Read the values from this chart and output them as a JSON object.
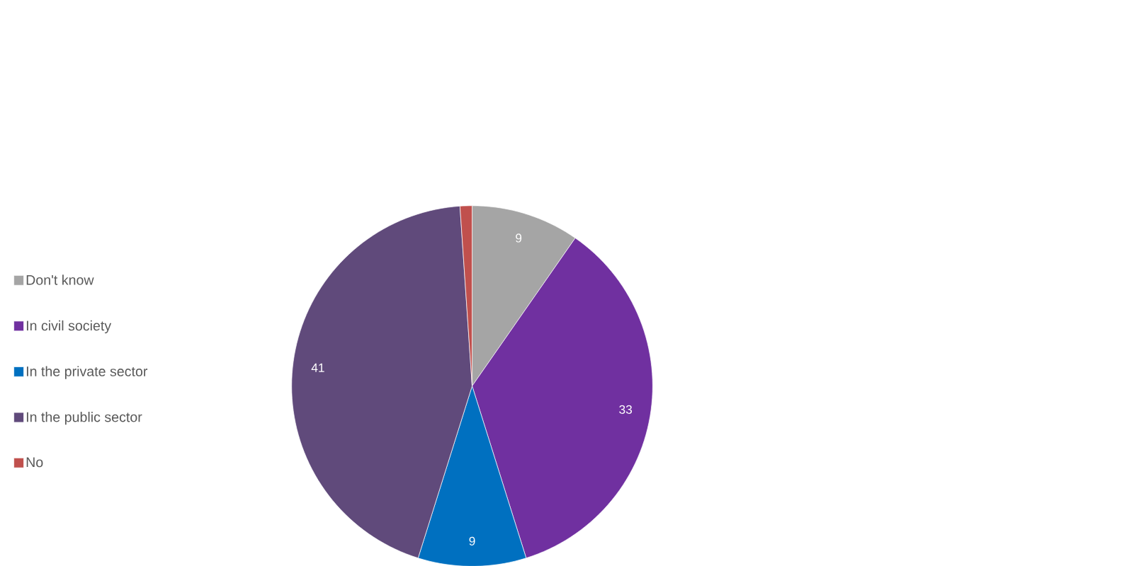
{
  "chart_data": {
    "type": "pie",
    "categories": [
      "Don't know",
      "In civil society",
      "In the private sector",
      "In the public sector",
      "No"
    ],
    "values": [
      9,
      33,
      9,
      41,
      1
    ],
    "value_labels": [
      "9",
      "33",
      "9",
      "41",
      null
    ],
    "colors": [
      "#a5a5a5",
      "#7030a0",
      "#0070c0",
      "#604a7b",
      "#c0504d"
    ],
    "legend": "left"
  }
}
